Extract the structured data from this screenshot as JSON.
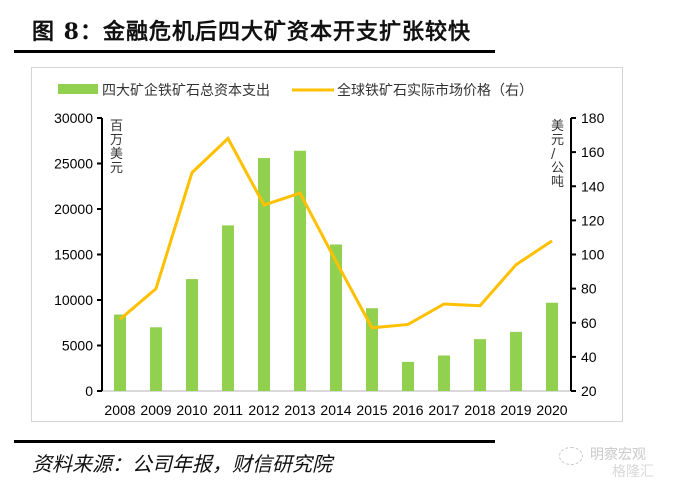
{
  "header": {
    "title": "图 8：金融危机后四大矿资本开支扩张较快"
  },
  "footer": {
    "source": "资料来源：公司年报，财信研究院",
    "watermark_line1": "明察宏观",
    "watermark_line2": "格隆汇"
  },
  "colors": {
    "bar": "#92d050",
    "line": "#ffc000",
    "axis": "#000000",
    "frame": "#d4d4d4"
  },
  "chart_data": {
    "type": "bar+line",
    "title": "",
    "categories": [
      "2008",
      "2009",
      "2010",
      "2011",
      "2012",
      "2013",
      "2014",
      "2015",
      "2016",
      "2017",
      "2018",
      "2019",
      "2020"
    ],
    "series": [
      {
        "name": "四大矿企铁矿石总资本支出",
        "type": "bar",
        "axis": "left",
        "values": [
          8400,
          7000,
          12300,
          18200,
          25600,
          26400,
          16100,
          9100,
          3200,
          3900,
          5700,
          6500,
          9700
        ]
      },
      {
        "name": "全球铁矿石实际市场价格（右）",
        "type": "line",
        "axis": "right",
        "values": [
          62,
          80,
          148,
          168,
          129,
          136,
          96,
          57,
          59,
          71,
          70,
          94,
          108
        ]
      }
    ],
    "left_axis": {
      "label": "百万美元",
      "label_chars": [
        "百",
        "万",
        "美",
        "元"
      ],
      "ylim": [
        0,
        30000
      ],
      "ticks": [
        "0",
        "5000",
        "10000",
        "15000",
        "20000",
        "25000",
        "30000"
      ]
    },
    "right_axis": {
      "label": "美元/公吨",
      "label_chars": [
        "美",
        "元",
        "/",
        "公",
        "吨"
      ],
      "ylim": [
        20,
        180
      ],
      "ticks": [
        "20",
        "40",
        "60",
        "80",
        "100",
        "120",
        "140",
        "160",
        "180"
      ]
    },
    "legend": {
      "placement": "top",
      "items": [
        "四大矿企铁矿石总资本支出",
        "全球铁矿石实际市场价格（右）"
      ]
    },
    "grid": false
  }
}
